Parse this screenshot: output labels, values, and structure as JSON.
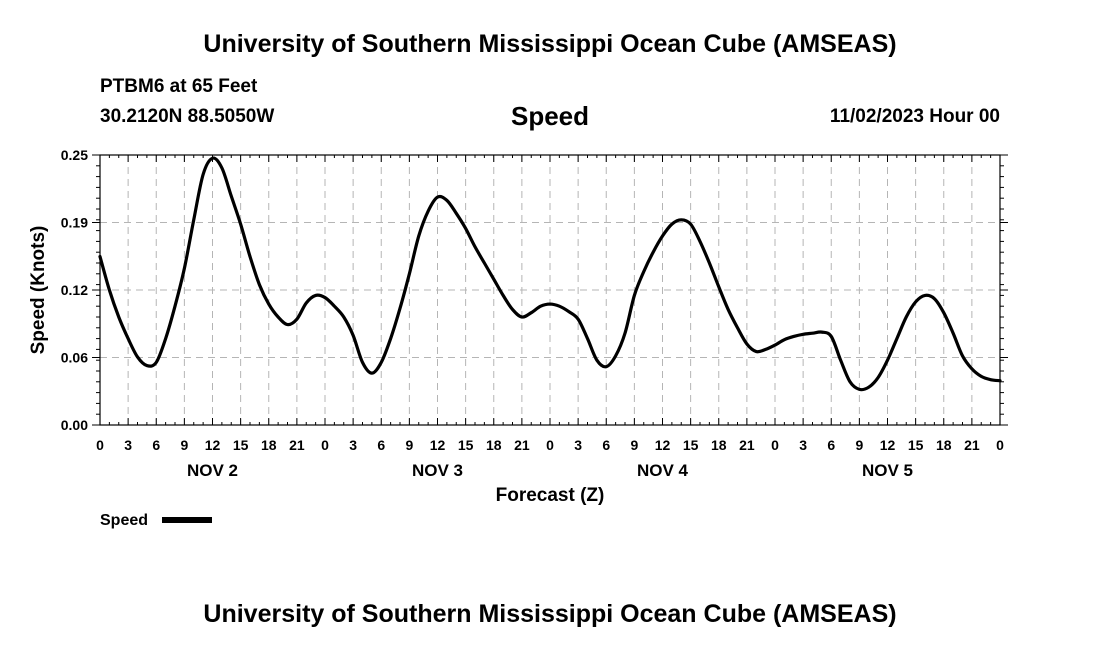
{
  "header": {
    "title": "University of Southern Mississippi Ocean Cube (AMSEAS)",
    "station": "PTBM6 at 65 Feet",
    "coords": "30.2120N  88.5050W",
    "datetime": "11/02/2023 Hour 00",
    "footer_title": "University of Southern Mississippi Ocean Cube (AMSEAS)"
  },
  "chart_data": {
    "type": "line",
    "title": "Speed",
    "xlabel": "Forecast (Z)",
    "ylabel": "Speed (Knots)",
    "ylim": [
      0,
      0.25
    ],
    "xlim_hours": [
      0,
      96
    ],
    "y_ticks": [
      "0.00",
      "0.06",
      "0.12",
      "0.19",
      "0.25"
    ],
    "y_tick_values": [
      0,
      0.0625,
      0.125,
      0.1875,
      0.25
    ],
    "x_tick_hours": [
      0,
      3,
      6,
      9,
      12,
      15,
      18,
      21,
      24,
      27,
      30,
      33,
      36,
      39,
      42,
      45,
      48,
      51,
      54,
      57,
      60,
      63,
      66,
      69,
      72,
      75,
      78,
      81,
      84,
      87,
      90,
      93,
      96
    ],
    "x_tick_labels": [
      "0",
      "3",
      "6",
      "9",
      "12",
      "15",
      "18",
      "21",
      "0",
      "3",
      "6",
      "9",
      "12",
      "15",
      "18",
      "21",
      "0",
      "3",
      "6",
      "9",
      "12",
      "15",
      "18",
      "21",
      "0",
      "3",
      "6",
      "9",
      "12",
      "15",
      "18",
      "21",
      "0"
    ],
    "days": [
      {
        "label": "NOV 2",
        "hour": 12
      },
      {
        "label": "NOV 3",
        "hour": 36
      },
      {
        "label": "NOV 4",
        "hour": 60
      },
      {
        "label": "NOV 5",
        "hour": 84
      }
    ],
    "grid": true,
    "legend": {
      "position": "bottom-left",
      "entries": [
        "Speed"
      ]
    },
    "series": [
      {
        "name": "Speed",
        "color": "#000000",
        "x": [
          0,
          1,
          2,
          3,
          4,
          5,
          6,
          7,
          8,
          9,
          10,
          11,
          12,
          13,
          14,
          15,
          16,
          17,
          18,
          19,
          20,
          21,
          22,
          23,
          24,
          25,
          26,
          27,
          28,
          29,
          30,
          31,
          32,
          33,
          34,
          35,
          36,
          37,
          38,
          39,
          40,
          41,
          42,
          43,
          44,
          45,
          46,
          47,
          48,
          49,
          50,
          51,
          52,
          53,
          54,
          55,
          56,
          57,
          58,
          59,
          60,
          61,
          62,
          63,
          64,
          65,
          66,
          67,
          68,
          69,
          70,
          71,
          72,
          73,
          74,
          75,
          76,
          77,
          78,
          79,
          80,
          81,
          82,
          83,
          84,
          85,
          86,
          87,
          88,
          89,
          90,
          91,
          92,
          93,
          94,
          95,
          96
        ],
        "values": [
          0.156,
          0.125,
          0.1,
          0.08,
          0.063,
          0.055,
          0.058,
          0.08,
          0.11,
          0.145,
          0.19,
          0.232,
          0.247,
          0.238,
          0.212,
          0.186,
          0.156,
          0.13,
          0.112,
          0.1,
          0.093,
          0.098,
          0.113,
          0.12,
          0.118,
          0.11,
          0.1,
          0.083,
          0.058,
          0.048,
          0.058,
          0.08,
          0.108,
          0.14,
          0.175,
          0.198,
          0.211,
          0.208,
          0.196,
          0.182,
          0.165,
          0.15,
          0.135,
          0.12,
          0.107,
          0.1,
          0.104,
          0.11,
          0.112,
          0.11,
          0.105,
          0.098,
          0.08,
          0.06,
          0.054,
          0.064,
          0.085,
          0.12,
          0.142,
          0.16,
          0.175,
          0.186,
          0.19,
          0.186,
          0.17,
          0.15,
          0.128,
          0.107,
          0.09,
          0.075,
          0.068,
          0.07,
          0.074,
          0.079,
          0.082,
          0.084,
          0.085,
          0.086,
          0.082,
          0.06,
          0.04,
          0.033,
          0.035,
          0.044,
          0.06,
          0.08,
          0.1,
          0.114,
          0.12,
          0.117,
          0.104,
          0.085,
          0.064,
          0.052,
          0.045,
          0.042,
          0.041
        ]
      }
    ]
  }
}
